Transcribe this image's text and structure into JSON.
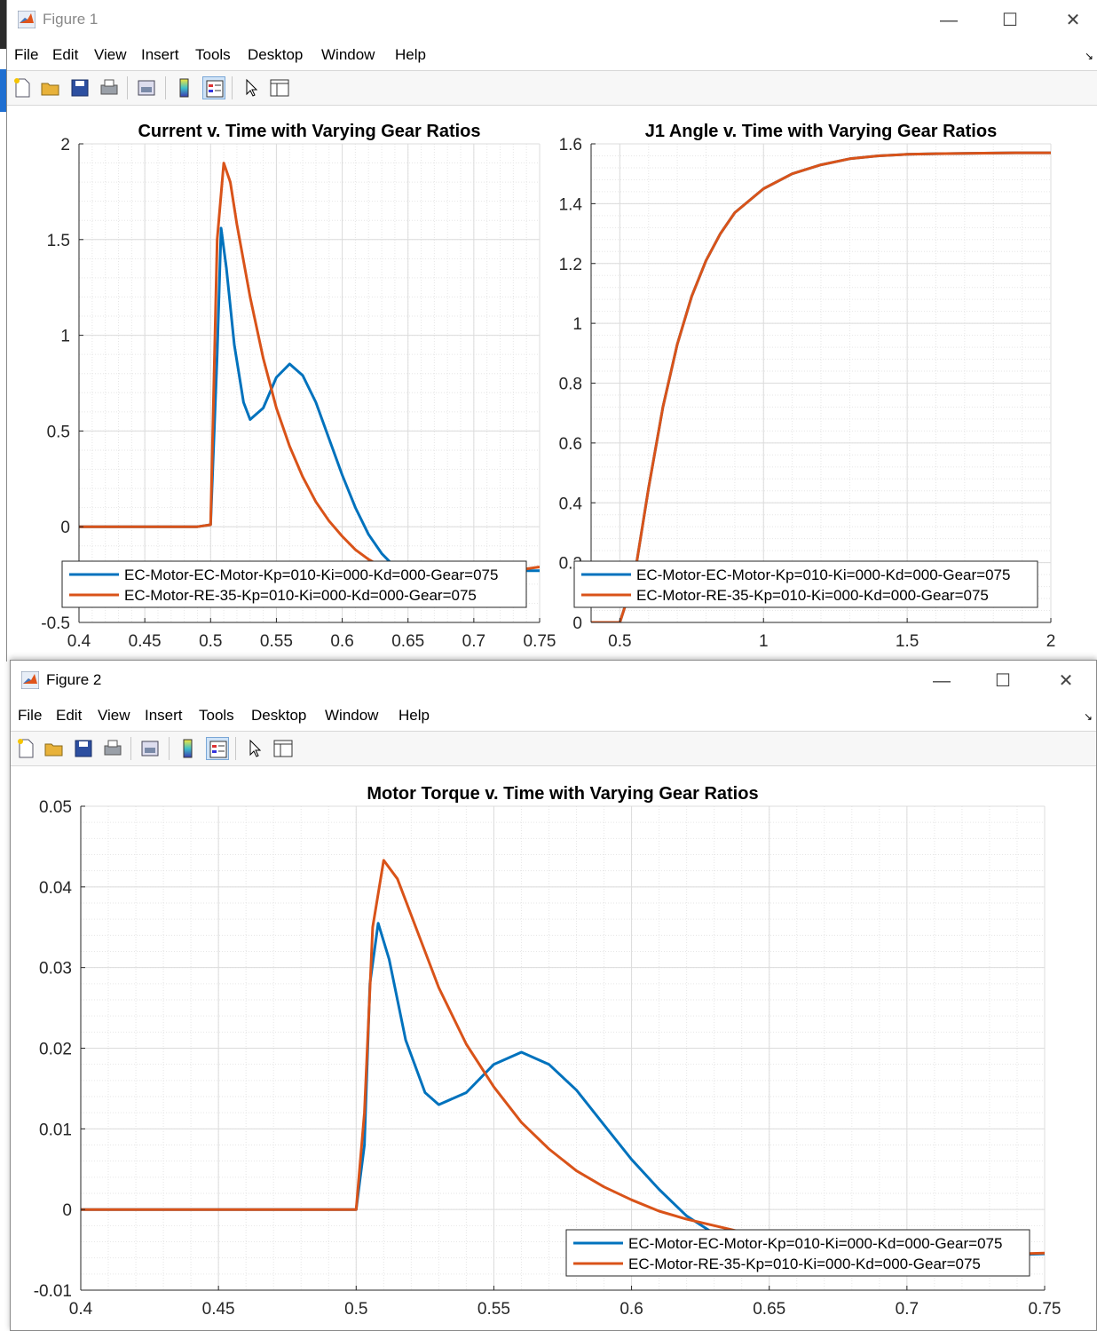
{
  "figure1": {
    "title": "Figure 1",
    "menus": [
      "File",
      "Edit",
      "View",
      "Insert",
      "Tools",
      "Desktop",
      "Window",
      "Help"
    ],
    "controls": {
      "minimize": "—",
      "maximize": "☐",
      "close": "✕"
    }
  },
  "figure2": {
    "title": "Figure 2",
    "menus": [
      "File",
      "Edit",
      "View",
      "Insert",
      "Tools",
      "Desktop",
      "Window",
      "Help"
    ],
    "controls": {
      "minimize": "—",
      "maximize": "☐",
      "close": "✕"
    }
  },
  "toolbar_icons": [
    "new-file-icon",
    "open-folder-icon",
    "save-icon",
    "print-icon",
    "print-preview-icon",
    "colorbar-icon",
    "legend-icon",
    "pointer-icon",
    "property-editor-icon"
  ],
  "colors": {
    "series1": "#0072BD",
    "series2": "#D95319"
  },
  "chart_data": [
    {
      "type": "line",
      "title": "Current v. Time with Varying Gear Ratios",
      "xlim": [
        0.4,
        0.75
      ],
      "ylim": [
        -0.5,
        2
      ],
      "xticks": [
        0.4,
        0.45,
        0.5,
        0.55,
        0.6,
        0.65,
        0.7,
        0.75
      ],
      "xtick_labels": [
        "0.4",
        "0.45",
        "0.5",
        "0.55",
        "0.6",
        "0.65",
        "0.7",
        "0.75"
      ],
      "yticks": [
        -0.5,
        0,
        0.5,
        1,
        1.5,
        2
      ],
      "ytick_labels": [
        "-0.5",
        "0",
        "0.5",
        "1",
        "1.5",
        "2"
      ],
      "grid": true,
      "legend_location": "bottom-left",
      "series": [
        {
          "name": "EC-Motor-EC-Motor-Kp=010-Ki=000-Kd=000-Gear=075",
          "color": "#0072BD",
          "x": [
            0.4,
            0.49,
            0.5,
            0.505,
            0.508,
            0.512,
            0.518,
            0.525,
            0.53,
            0.54,
            0.55,
            0.56,
            0.57,
            0.58,
            0.59,
            0.6,
            0.61,
            0.62,
            0.63,
            0.64,
            0.65,
            0.66,
            0.67,
            0.68,
            0.69,
            0.7,
            0.71,
            0.72,
            0.73,
            0.74,
            0.75
          ],
          "y": [
            0,
            0,
            0.01,
            0.9,
            1.56,
            1.35,
            0.95,
            0.65,
            0.56,
            0.62,
            0.78,
            0.85,
            0.79,
            0.65,
            0.46,
            0.27,
            0.1,
            -0.04,
            -0.14,
            -0.21,
            -0.26,
            -0.29,
            -0.3,
            -0.3,
            -0.29,
            -0.27,
            -0.26,
            -0.25,
            -0.24,
            -0.23,
            -0.23
          ]
        },
        {
          "name": "EC-Motor-RE-35-Kp=010-Ki=000-Kd=000-Gear=075",
          "color": "#D95319",
          "x": [
            0.4,
            0.49,
            0.5,
            0.505,
            0.51,
            0.515,
            0.52,
            0.53,
            0.54,
            0.55,
            0.56,
            0.57,
            0.58,
            0.59,
            0.6,
            0.61,
            0.62,
            0.63,
            0.64,
            0.65,
            0.66,
            0.67,
            0.68,
            0.69,
            0.7,
            0.71,
            0.72,
            0.73,
            0.74,
            0.75
          ],
          "y": [
            0,
            0,
            0.01,
            1.5,
            1.9,
            1.8,
            1.58,
            1.2,
            0.88,
            0.62,
            0.42,
            0.26,
            0.13,
            0.03,
            -0.05,
            -0.12,
            -0.17,
            -0.21,
            -0.24,
            -0.26,
            -0.27,
            -0.28,
            -0.28,
            -0.27,
            -0.26,
            -0.25,
            -0.24,
            -0.23,
            -0.22,
            -0.21
          ]
        }
      ]
    },
    {
      "type": "line",
      "title": "J1 Angle v. Time with Varying Gear Ratios",
      "xlim": [
        0.4,
        2
      ],
      "ylim": [
        0,
        1.6
      ],
      "xticks": [
        0.5,
        1,
        1.5,
        2
      ],
      "xtick_labels": [
        "0.5",
        "1",
        "1.5",
        "2"
      ],
      "yticks": [
        0,
        0.2,
        0.4,
        0.6,
        0.8,
        1,
        1.2,
        1.4,
        1.6
      ],
      "ytick_labels": [
        "0",
        "0.2",
        "0.4",
        "0.6",
        "0.8",
        "1",
        "1.2",
        "1.4",
        "1.6"
      ],
      "grid": true,
      "legend_location": "bottom",
      "series": [
        {
          "name": "EC-Motor-EC-Motor-Kp=010-Ki=000-Kd=000-Gear=075",
          "color": "#0072BD",
          "x": [
            0.4,
            0.5,
            0.55,
            0.6,
            0.65,
            0.7,
            0.75,
            0.8,
            0.85,
            0.9,
            1.0,
            1.1,
            1.2,
            1.3,
            1.4,
            1.5,
            1.6,
            1.7,
            1.8,
            1.9,
            2.0
          ],
          "y": [
            0,
            0,
            0.15,
            0.45,
            0.72,
            0.93,
            1.09,
            1.21,
            1.3,
            1.37,
            1.45,
            1.5,
            1.53,
            1.55,
            1.56,
            1.565,
            1.567,
            1.568,
            1.569,
            1.57,
            1.57
          ]
        },
        {
          "name": "EC-Motor-RE-35-Kp=010-Ki=000-Kd=000-Gear=075",
          "color": "#D95319",
          "x": [
            0.4,
            0.5,
            0.55,
            0.6,
            0.65,
            0.7,
            0.75,
            0.8,
            0.85,
            0.9,
            1.0,
            1.1,
            1.2,
            1.3,
            1.4,
            1.5,
            1.6,
            1.7,
            1.8,
            1.9,
            2.0
          ],
          "y": [
            0,
            0,
            0.15,
            0.45,
            0.72,
            0.93,
            1.09,
            1.21,
            1.3,
            1.37,
            1.45,
            1.5,
            1.53,
            1.55,
            1.56,
            1.565,
            1.567,
            1.568,
            1.569,
            1.57,
            1.57
          ]
        }
      ]
    },
    {
      "type": "line",
      "title": "Motor Torque v. Time with Varying Gear Ratios",
      "xlim": [
        0.4,
        0.75
      ],
      "ylim": [
        -0.01,
        0.05
      ],
      "xticks": [
        0.4,
        0.45,
        0.5,
        0.55,
        0.6,
        0.65,
        0.7,
        0.75
      ],
      "xtick_labels": [
        "0.4",
        "0.45",
        "0.5",
        "0.55",
        "0.6",
        "0.65",
        "0.7",
        "0.75"
      ],
      "yticks": [
        -0.01,
        0,
        0.01,
        0.02,
        0.03,
        0.04,
        0.05
      ],
      "ytick_labels": [
        "-0.01",
        "0",
        "0.01",
        "0.02",
        "0.03",
        "0.04",
        "0.05"
      ],
      "grid": true,
      "legend_location": "bottom-right",
      "series": [
        {
          "name": "EC-Motor-EC-Motor-Kp=010-Ki=000-Kd=000-Gear=075",
          "color": "#0072BD",
          "x": [
            0.4,
            0.5,
            0.503,
            0.505,
            0.508,
            0.512,
            0.518,
            0.525,
            0.53,
            0.54,
            0.55,
            0.56,
            0.57,
            0.58,
            0.59,
            0.6,
            0.61,
            0.62,
            0.63,
            0.64,
            0.65,
            0.66,
            0.67,
            0.68,
            0.69,
            0.7,
            0.71,
            0.72,
            0.73,
            0.74,
            0.75
          ],
          "y": [
            0,
            0,
            0.008,
            0.028,
            0.0355,
            0.031,
            0.021,
            0.0145,
            0.013,
            0.0145,
            0.018,
            0.0195,
            0.018,
            0.0148,
            0.0105,
            0.0062,
            0.0025,
            -0.0008,
            -0.003,
            -0.0048,
            -0.006,
            -0.0068,
            -0.0072,
            -0.0072,
            -0.007,
            -0.0066,
            -0.0063,
            -0.006,
            -0.0058,
            -0.0056,
            -0.0055
          ]
        },
        {
          "name": "EC-Motor-RE-35-Kp=010-Ki=000-Kd=000-Gear=075",
          "color": "#D95319",
          "x": [
            0.4,
            0.5,
            0.503,
            0.506,
            0.51,
            0.515,
            0.52,
            0.53,
            0.54,
            0.55,
            0.56,
            0.57,
            0.58,
            0.59,
            0.6,
            0.61,
            0.62,
            0.63,
            0.64,
            0.65,
            0.66,
            0.67,
            0.68,
            0.69,
            0.7,
            0.71,
            0.72,
            0.73,
            0.74,
            0.75
          ],
          "y": [
            0,
            0,
            0.012,
            0.035,
            0.0433,
            0.041,
            0.0365,
            0.0275,
            0.0205,
            0.0152,
            0.0108,
            0.0075,
            0.0048,
            0.0028,
            0.0012,
            -0.0002,
            -0.0012,
            -0.002,
            -0.0028,
            -0.0035,
            -0.004,
            -0.0045,
            -0.0049,
            -0.0052,
            -0.0054,
            -0.0055,
            -0.0056,
            -0.0056,
            -0.0055,
            -0.0054
          ]
        }
      ]
    }
  ]
}
